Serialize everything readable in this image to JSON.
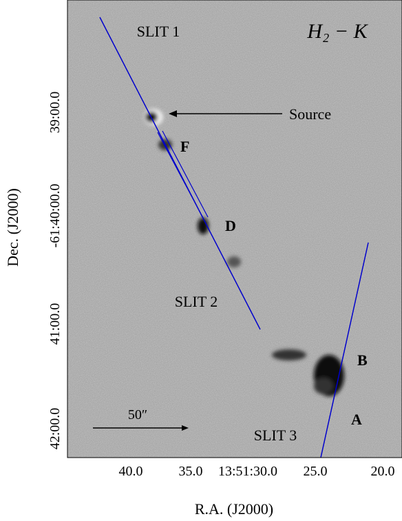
{
  "image": {
    "label": "H₂ − K"
  },
  "axes": {
    "x_label": "R.A. (J2000)",
    "y_label": "Dec. (J2000)",
    "x_ticks": [
      "40.0",
      "35.0",
      "13:51:30.0",
      "25.0",
      "20.0"
    ],
    "y_ticks": [
      "39:00.0",
      "-61:40:00.0",
      "41:00.0",
      "42:00.0"
    ]
  },
  "annotations": {
    "slit1": "SLIT 1",
    "slit2": "SLIT 2",
    "slit3": "SLIT 3",
    "source": "Source",
    "knots": [
      "F",
      "D",
      "B",
      "A"
    ],
    "scale_bar": "50″"
  }
}
